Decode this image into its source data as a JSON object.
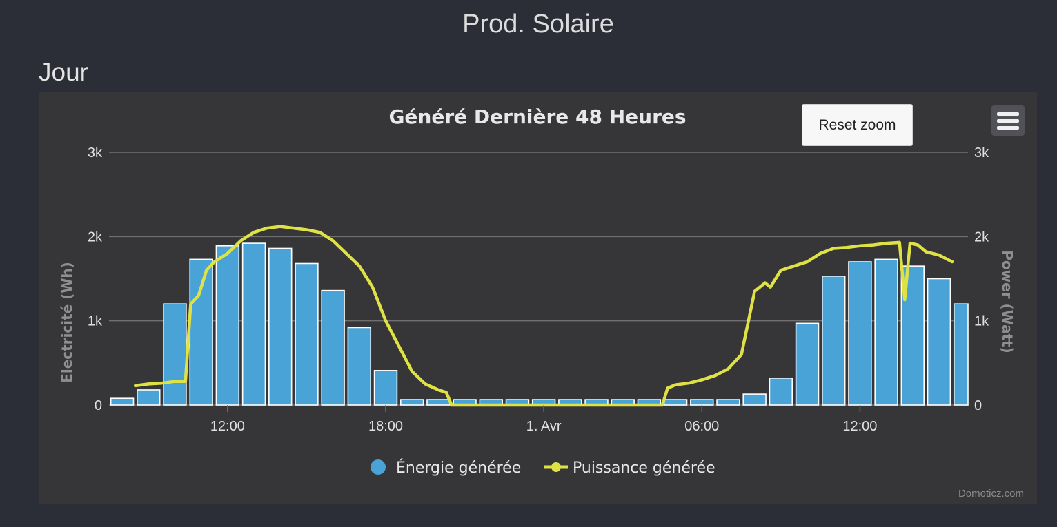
{
  "page": {
    "title": "Prod. Solaire",
    "section": "Jour",
    "reset_zoom_label": "Reset zoom",
    "menu_icon": "hamburger-menu-icon",
    "credits": "Domoticz.com"
  },
  "colors": {
    "background": "#2b2e36",
    "panel": "#363638",
    "bar_fill": "#4aa3d6",
    "bar_stroke": "#ffffff",
    "line": "#dfe245",
    "grid": "#707070"
  },
  "chart_data": {
    "type": "bar",
    "title": "Généré Dernière 48 Heures",
    "ylabel_left": "Electricité (Wh)",
    "ylabel_right": "Power (Watt)",
    "ylim": [
      0,
      3000
    ],
    "y_ticks": [
      0,
      1000,
      2000,
      3000
    ],
    "y_tick_labels": [
      "0",
      "1k",
      "2k",
      "3k"
    ],
    "xlim_hours": [
      7.5,
      40.1
    ],
    "x_ticks": [
      {
        "hour": 12,
        "label": "12:00"
      },
      {
        "hour": 18,
        "label": "18:00"
      },
      {
        "hour": 24,
        "label": "1. Avr"
      },
      {
        "hour": 30,
        "label": "06:00"
      },
      {
        "hour": 36,
        "label": "12:00"
      }
    ],
    "grid": true,
    "legend_position": "bottom-center",
    "series": [
      {
        "name": "Énergie générée",
        "kind": "bar",
        "x_hours": [
          8,
          9,
          10,
          11,
          12,
          13,
          14,
          15,
          16,
          17,
          18,
          19,
          20,
          21,
          22,
          23,
          24,
          25,
          26,
          27,
          28,
          29,
          30,
          31,
          32,
          33,
          34,
          35,
          36,
          37,
          38,
          39,
          40
        ],
        "values": [
          80,
          180,
          1200,
          1730,
          1890,
          1920,
          1860,
          1680,
          1360,
          920,
          410,
          65,
          65,
          65,
          65,
          65,
          65,
          65,
          65,
          65,
          65,
          65,
          65,
          65,
          130,
          320,
          970,
          1530,
          1700,
          1730,
          1650,
          1500,
          1200
        ]
      },
      {
        "name": "Puissance générée",
        "kind": "line",
        "points": [
          [
            8.5,
            230
          ],
          [
            9,
            250
          ],
          [
            9.5,
            260
          ],
          [
            10,
            280
          ],
          [
            10.4,
            280
          ],
          [
            10.6,
            1200
          ],
          [
            10.9,
            1300
          ],
          [
            11.2,
            1600
          ],
          [
            11.5,
            1700
          ],
          [
            12,
            1800
          ],
          [
            12.5,
            1950
          ],
          [
            13,
            2050
          ],
          [
            13.5,
            2100
          ],
          [
            14,
            2120
          ],
          [
            14.5,
            2100
          ],
          [
            15,
            2080
          ],
          [
            15.5,
            2050
          ],
          [
            16,
            1950
          ],
          [
            16.5,
            1800
          ],
          [
            17,
            1650
          ],
          [
            17.5,
            1400
          ],
          [
            18,
            1000
          ],
          [
            18.5,
            700
          ],
          [
            19,
            400
          ],
          [
            19.5,
            250
          ],
          [
            20,
            180
          ],
          [
            20.3,
            150
          ],
          [
            20.5,
            0
          ],
          [
            28.5,
            0
          ],
          [
            28.7,
            200
          ],
          [
            29,
            240
          ],
          [
            29.5,
            260
          ],
          [
            30,
            300
          ],
          [
            30.5,
            350
          ],
          [
            31,
            430
          ],
          [
            31.5,
            600
          ],
          [
            32,
            1350
          ],
          [
            32.4,
            1450
          ],
          [
            32.6,
            1400
          ],
          [
            33,
            1600
          ],
          [
            33.5,
            1650
          ],
          [
            34,
            1700
          ],
          [
            34.5,
            1800
          ],
          [
            35,
            1860
          ],
          [
            35.5,
            1870
          ],
          [
            36,
            1890
          ],
          [
            36.5,
            1900
          ],
          [
            37,
            1920
          ],
          [
            37.5,
            1930
          ],
          [
            37.7,
            1250
          ],
          [
            37.9,
            1920
          ],
          [
            38.2,
            1900
          ],
          [
            38.5,
            1820
          ],
          [
            39,
            1780
          ],
          [
            39.5,
            1700
          ]
        ]
      }
    ]
  }
}
